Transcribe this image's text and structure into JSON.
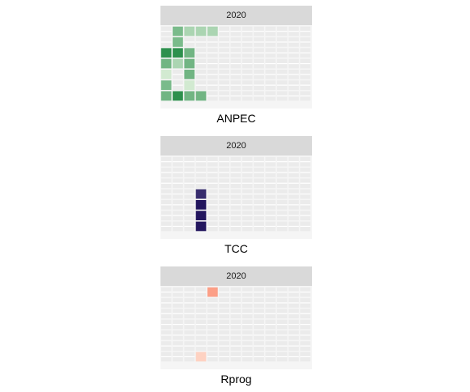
{
  "chart_data": [
    {
      "type": "heatmap",
      "title": "ANPEC",
      "facet": "2020",
      "grid": {
        "columns": 13,
        "rows": 7
      },
      "colors": {
        "empty": "#ebebeb",
        "low": "#e5f5e0",
        "high": "#238b45"
      },
      "cells": [
        {
          "col": 1,
          "row": 0,
          "value": 0.55
        },
        {
          "col": 2,
          "row": 0,
          "value": 0.3
        },
        {
          "col": 3,
          "row": 0,
          "value": 0.3
        },
        {
          "col": 4,
          "row": 0,
          "value": 0.3
        },
        {
          "col": 1,
          "row": 1,
          "value": 0.55
        },
        {
          "col": 0,
          "row": 2,
          "value": 0.95
        },
        {
          "col": 1,
          "row": 2,
          "value": 0.95
        },
        {
          "col": 2,
          "row": 2,
          "value": 0.6
        },
        {
          "col": 0,
          "row": 3,
          "value": 0.6
        },
        {
          "col": 1,
          "row": 3,
          "value": 0.3
        },
        {
          "col": 2,
          "row": 3,
          "value": 0.6
        },
        {
          "col": 0,
          "row": 4,
          "value": 0.1
        },
        {
          "col": 2,
          "row": 4,
          "value": 0.6
        },
        {
          "col": 0,
          "row": 5,
          "value": 0.55
        },
        {
          "col": 2,
          "row": 5,
          "value": 0.1
        },
        {
          "col": 0,
          "row": 6,
          "value": 0.6
        },
        {
          "col": 1,
          "row": 6,
          "value": 0.95
        },
        {
          "col": 2,
          "row": 6,
          "value": 0.6
        },
        {
          "col": 3,
          "row": 6,
          "value": 0.6
        }
      ]
    },
    {
      "type": "heatmap",
      "title": "TCC",
      "facet": "2020",
      "grid": {
        "columns": 13,
        "rows": 7
      },
      "colors": {
        "empty": "#ebebeb",
        "low": "#efedf5",
        "high": "#23165e"
      },
      "cells": [
        {
          "col": 3,
          "row": 3,
          "value": 0.9
        },
        {
          "col": 3,
          "row": 4,
          "value": 1.0
        },
        {
          "col": 3,
          "row": 5,
          "value": 1.0
        },
        {
          "col": 3,
          "row": 6,
          "value": 1.0
        }
      ]
    },
    {
      "type": "heatmap",
      "title": "Rprog",
      "facet": "2020",
      "grid": {
        "columns": 13,
        "rows": 7
      },
      "colors": {
        "empty": "#ebebeb",
        "low": "#fee0d2",
        "high": "#fb6a4a"
      },
      "cells": [
        {
          "col": 4,
          "row": 0,
          "value": 0.55
        },
        {
          "col": 3,
          "row": 6,
          "value": 0.12
        }
      ]
    }
  ]
}
